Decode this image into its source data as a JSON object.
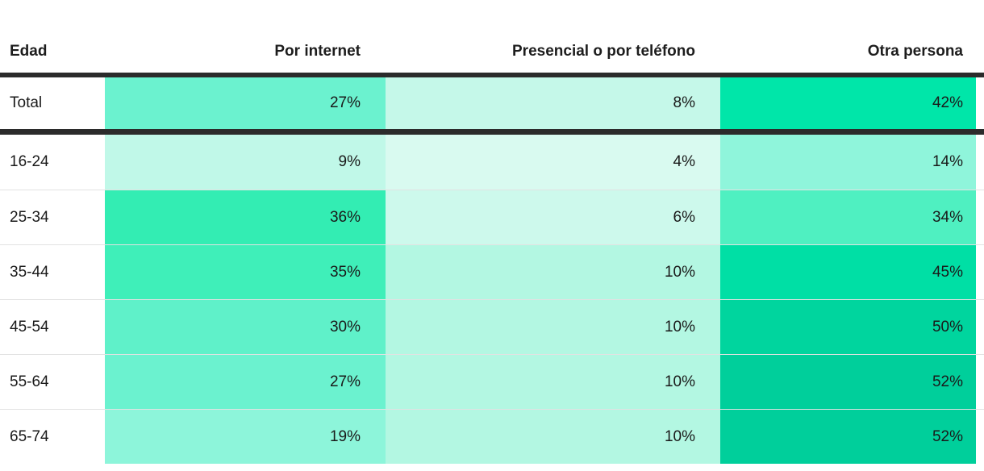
{
  "table": {
    "columns": [
      {
        "label": "Edad"
      },
      {
        "label": "Por internet"
      },
      {
        "label": "Presencial o por teléfono"
      },
      {
        "label": "Otra persona"
      }
    ],
    "total_row": {
      "label": "Total",
      "values": [
        {
          "text": "27%",
          "color": "#6BF2CF"
        },
        {
          "text": "8%",
          "color": "#C5F8E9"
        },
        {
          "text": "42%",
          "color": "#00E6A9"
        }
      ]
    },
    "rows": [
      {
        "label": "16-24",
        "values": [
          {
            "text": "9%",
            "color": "#C0F8E8"
          },
          {
            "text": "4%",
            "color": "#D9FAF0"
          },
          {
            "text": "14%",
            "color": "#8FF5DB"
          }
        ]
      },
      {
        "label": "25-34",
        "values": [
          {
            "text": "36%",
            "color": "#33EDB3"
          },
          {
            "text": "6%",
            "color": "#CDF9EC"
          },
          {
            "text": "34%",
            "color": "#4FF0C1"
          }
        ]
      },
      {
        "label": "35-44",
        "values": [
          {
            "text": "35%",
            "color": "#3FEFB9"
          },
          {
            "text": "10%",
            "color": "#B3F7E2"
          },
          {
            "text": "45%",
            "color": "#00DFA5"
          }
        ]
      },
      {
        "label": "45-54",
        "values": [
          {
            "text": "30%",
            "color": "#5FF1C9"
          },
          {
            "text": "10%",
            "color": "#B3F7E2"
          },
          {
            "text": "50%",
            "color": "#00D59E"
          }
        ]
      },
      {
        "label": "55-64",
        "values": [
          {
            "text": "27%",
            "color": "#6BF2CF"
          },
          {
            "text": "10%",
            "color": "#B3F7E2"
          },
          {
            "text": "52%",
            "color": "#00CF9B"
          }
        ]
      },
      {
        "label": "65-74",
        "values": [
          {
            "text": "19%",
            "color": "#8DF5DA"
          },
          {
            "text": "10%",
            "color": "#B3F7E2"
          },
          {
            "text": "52%",
            "color": "#00CF9B"
          }
        ]
      }
    ],
    "divider_color": "#2b2b2b"
  },
  "chart_data": {
    "type": "heatmap",
    "title": "",
    "row_label_header": "Edad",
    "categories": [
      "Total",
      "16-24",
      "25-34",
      "35-44",
      "45-54",
      "55-64",
      "65-74"
    ],
    "series": [
      {
        "name": "Por internet",
        "values": [
          27,
          9,
          36,
          35,
          30,
          27,
          19
        ]
      },
      {
        "name": "Presencial o por teléfono",
        "values": [
          8,
          4,
          6,
          10,
          10,
          10,
          10
        ]
      },
      {
        "name": "Otra persona",
        "values": [
          42,
          14,
          34,
          45,
          50,
          52,
          52
        ]
      }
    ],
    "value_unit": "%",
    "color_scale": {
      "low": "#D9FAF0",
      "high": "#00CF9B"
    },
    "legend_position": "none",
    "grid": false
  }
}
